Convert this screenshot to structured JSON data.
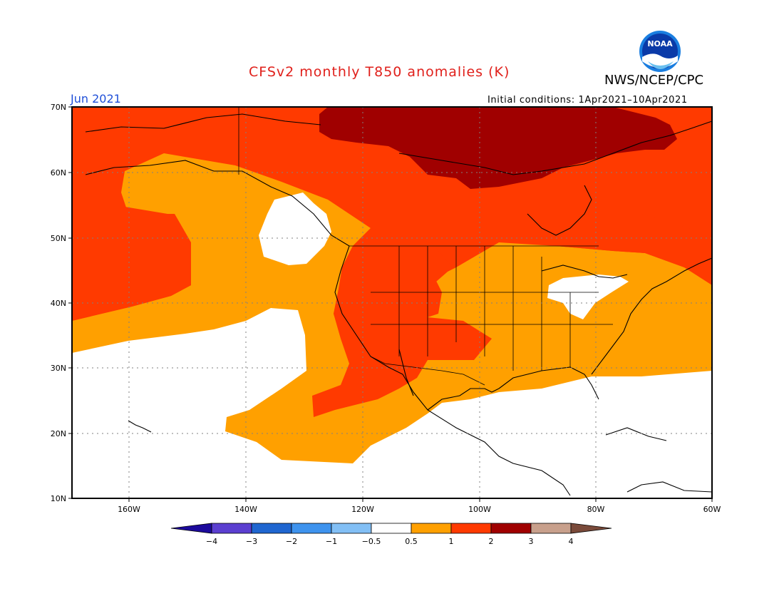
{
  "title": "CFSv2 monthly T850 anomalies (K)",
  "org": "NWS/NCEP/CPC",
  "logo_text": "NOAA",
  "month": "Jun 2021",
  "initial_conditions": "Initial conditions: 1Apr2021–10Apr2021",
  "lat_labels": [
    "70N",
    "60N",
    "50N",
    "40N",
    "30N",
    "20N",
    "10N"
  ],
  "lon_labels": [
    "160W",
    "140W",
    "120W",
    "100W",
    "80W",
    "60W"
  ],
  "colorbar": {
    "labels": [
      "−4",
      "−3",
      "−2",
      "−1",
      "−0.5",
      "0.5",
      "1",
      "2",
      "3",
      "4"
    ],
    "colors": [
      "#1c0a9c",
      "#5b3fd0",
      "#1f66d0",
      "#3e93ee",
      "#82bff5",
      "#ffffff",
      "#ffa000",
      "#ff3a00",
      "#a00000",
      "#c8a08c",
      "#7a4a3a"
    ]
  },
  "colors": {
    "anom_0_5_1": "#ffa000",
    "anom_1_2": "#ff3a00",
    "anom_2_3": "#a00000",
    "title_red": "#e0201b",
    "month_blue": "#1f4fd8"
  }
}
